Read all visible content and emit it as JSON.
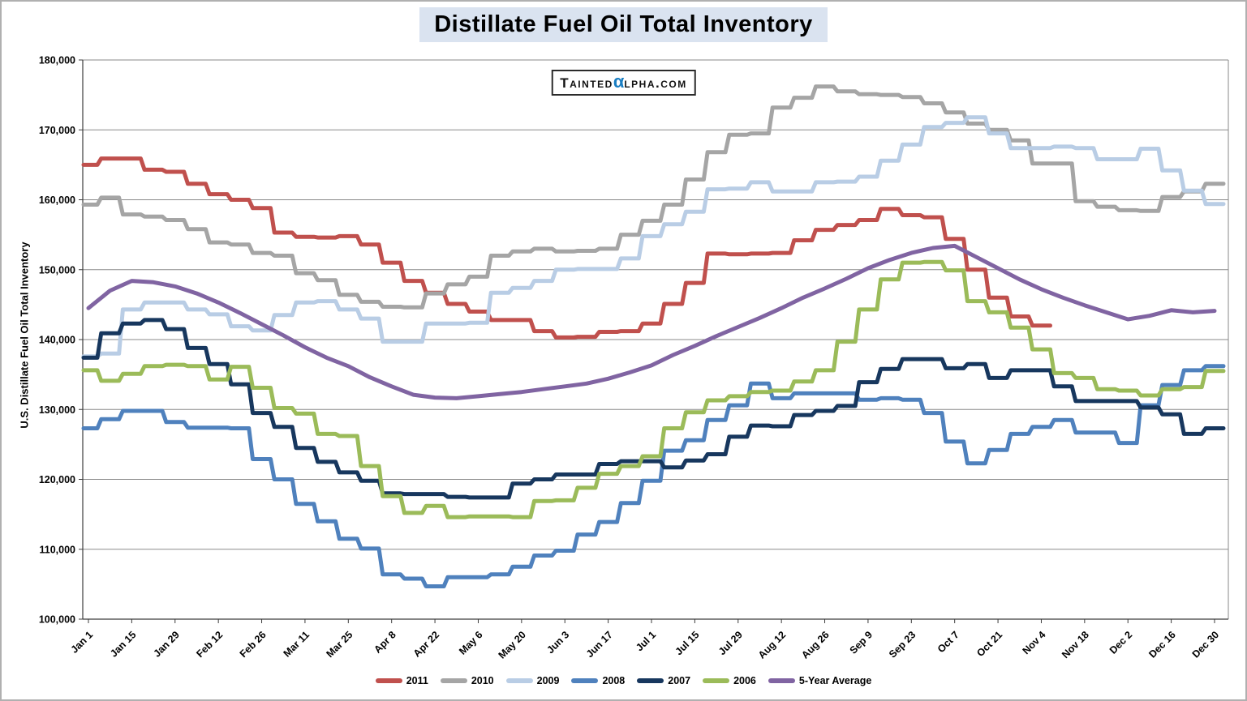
{
  "title": "Distillate Fuel Oil Total Inventory",
  "watermark": {
    "pre": "Tainted",
    "alpha": "α",
    "post": "lpha.com"
  },
  "chart_data": {
    "type": "line",
    "title": "Distillate Fuel Oil Total Inventory",
    "xlabel": "",
    "ylabel": "U.S. Distillate Fuel Oil Total Inventory",
    "ylim": [
      100000,
      180000
    ],
    "ytick_step": 10000,
    "ytick_labels": [
      "180,000",
      "170,000",
      "160,000",
      "150,000",
      "140,000",
      "130,000",
      "120,000",
      "110,000",
      "100,000"
    ],
    "grid": "horizontal",
    "legend_position": "bottom",
    "n_weeks": 53,
    "x_label_every": 2,
    "x_tick_labels": [
      "Jan 1",
      "Jan 15",
      "Jan 29",
      "Feb 12",
      "Feb 26",
      "Mar 11",
      "Mar 25",
      "Apr 8",
      "Apr 22",
      "May 6",
      "May 20",
      "Jun 3",
      "Jun 17",
      "Jul 1",
      "Jul 15",
      "Jul 29",
      "Aug 12",
      "Aug 26",
      "Sep 9",
      "Sep 23",
      "Oct 7",
      "Oct 21",
      "Nov 4",
      "Nov 18",
      "Dec 2",
      "Dec 16",
      "Dec 30"
    ],
    "series": [
      {
        "name": "2011",
        "color": "#C0504D",
        "style": "step",
        "values": [
          165000,
          165900,
          165900,
          164300,
          164000,
          162300,
          160800,
          160000,
          158800,
          155300,
          154700,
          154600,
          154800,
          153600,
          151000,
          148400,
          146700,
          145100,
          144000,
          142800,
          142800,
          141200,
          140300,
          140400,
          141100,
          141200,
          142300,
          145100,
          148100,
          152300,
          152200,
          152300,
          152400,
          154200,
          155700,
          156400,
          157100,
          158700,
          157800,
          157500,
          154400,
          150000,
          146000,
          143300,
          142000
        ]
      },
      {
        "name": "2010",
        "color": "#A5A5A5",
        "style": "step",
        "values": [
          159300,
          160300,
          157900,
          157600,
          157100,
          155800,
          153900,
          153600,
          152400,
          152000,
          149500,
          148500,
          146400,
          145400,
          144700,
          144600,
          146600,
          147900,
          149000,
          152000,
          152600,
          153000,
          152600,
          152700,
          153000,
          155000,
          157000,
          159300,
          162900,
          166800,
          169300,
          169500,
          173200,
          174600,
          176200,
          175500,
          175100,
          175000,
          174700,
          173800,
          172500,
          170900,
          170000,
          168500,
          165200,
          165200,
          159800,
          159000,
          158500,
          158400,
          160400,
          161200,
          162300
        ]
      },
      {
        "name": "2009",
        "color": "#B9CDE5",
        "style": "step",
        "values": [
          137600,
          138000,
          144300,
          145300,
          145300,
          144300,
          143600,
          141900,
          141300,
          143500,
          145300,
          145500,
          144300,
          143000,
          139700,
          139700,
          142300,
          142300,
          142400,
          146700,
          147400,
          148400,
          150000,
          150100,
          150100,
          151600,
          154800,
          156500,
          158300,
          161500,
          161600,
          162500,
          161200,
          161200,
          162500,
          162600,
          163300,
          165600,
          167900,
          170400,
          171000,
          171800,
          169500,
          167400,
          167400,
          167600,
          167400,
          165800,
          165800,
          167300,
          164200,
          161300,
          159400
        ]
      },
      {
        "name": "2008",
        "color": "#4F81BD",
        "style": "step",
        "values": [
          127300,
          128600,
          129800,
          129800,
          128200,
          127400,
          127400,
          127300,
          122900,
          120000,
          116500,
          114000,
          111500,
          110100,
          106400,
          105800,
          104700,
          106000,
          106000,
          106400,
          107500,
          109100,
          109800,
          112100,
          113900,
          116600,
          119800,
          124100,
          125600,
          128500,
          130600,
          133700,
          131600,
          132300,
          132300,
          132300,
          131400,
          131600,
          131400,
          129500,
          125400,
          122300,
          124200,
          126500,
          127500,
          128500,
          126700,
          126700,
          125200,
          130600,
          133500,
          135600,
          136200
        ]
      },
      {
        "name": "2007",
        "color": "#17375E",
        "style": "step",
        "values": [
          137400,
          140900,
          142300,
          142800,
          141500,
          138800,
          136500,
          133600,
          129500,
          127500,
          124500,
          122500,
          121000,
          119800,
          118000,
          117900,
          117900,
          117500,
          117400,
          117400,
          119400,
          120000,
          120700,
          120700,
          122200,
          122600,
          122600,
          121700,
          122700,
          123600,
          126100,
          127700,
          127600,
          129200,
          129800,
          130500,
          133900,
          135800,
          137200,
          137200,
          135900,
          136500,
          134500,
          135600,
          135600,
          133300,
          131200,
          131200,
          131200,
          130300,
          129300,
          126500,
          127300
        ]
      },
      {
        "name": "2006",
        "color": "#9BBB59",
        "style": "step",
        "values": [
          135600,
          134100,
          135100,
          136200,
          136400,
          136200,
          134300,
          136100,
          133100,
          130200,
          129400,
          126500,
          126200,
          121900,
          117600,
          115200,
          116200,
          114600,
          114700,
          114700,
          114600,
          116900,
          117000,
          118800,
          120800,
          121900,
          123300,
          127300,
          129600,
          131300,
          131900,
          132500,
          132700,
          134000,
          135600,
          139700,
          144300,
          148600,
          151000,
          151100,
          149900,
          145500,
          143900,
          141700,
          138600,
          135200,
          134500,
          132900,
          132700,
          132000,
          132900,
          133200,
          135500
        ]
      },
      {
        "name": "5-Year Average",
        "color": "#8064A2",
        "style": "line",
        "values": [
          144500,
          147000,
          148400,
          148200,
          147600,
          146600,
          145300,
          143800,
          142200,
          140600,
          138900,
          137400,
          136200,
          134600,
          133300,
          132100,
          131700,
          131600,
          131900,
          132200,
          132500,
          132900,
          133300,
          133700,
          134400,
          135300,
          136300,
          137800,
          139100,
          140500,
          141800,
          143100,
          144500,
          146000,
          147300,
          148700,
          150200,
          151400,
          152400,
          153100,
          153400,
          151800,
          150200,
          148600,
          147200,
          146000,
          144900,
          143900,
          142900,
          143400,
          144200,
          143900,
          144100
        ]
      }
    ]
  }
}
